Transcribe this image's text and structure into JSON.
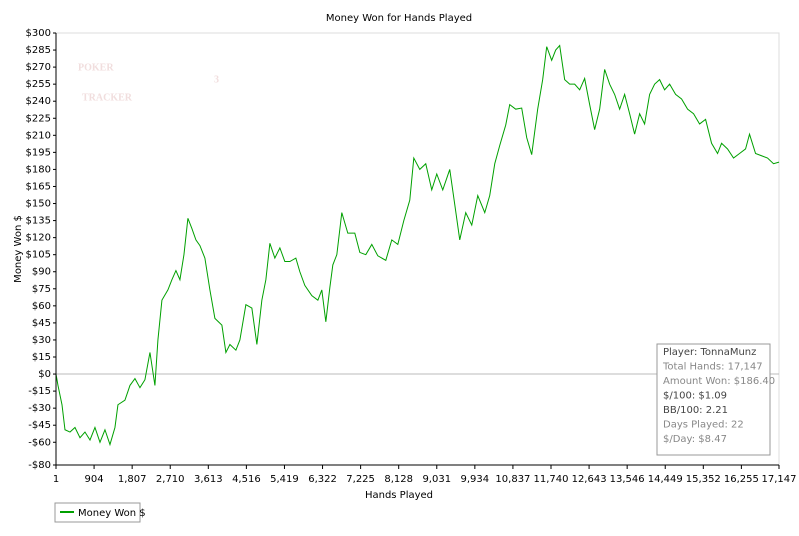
{
  "chart_data": {
    "type": "line",
    "title": "Money Won for Hands Played",
    "x_label": "Hands Played",
    "y_label": "Money Won $",
    "watermark": [
      "POKER",
      "TRACKER",
      "3"
    ],
    "info_box": [
      "Player: TonnaMunz",
      "Total Hands: 17,147",
      "Amount Won: $186.40",
      "$/100: $1.09",
      "BB/100: 2.21",
      "Days Played: 22",
      "$/Day: $8.47"
    ],
    "zero_line": true,
    "legend": "bottom-left",
    "xlim": [
      1,
      17147
    ],
    "ylim": [
      -80,
      300
    ],
    "xticks": [
      1,
      904,
      {
        "value": 1807,
        "label": "1,807"
      },
      {
        "value": 2710,
        "label": "2,710"
      },
      {
        "value": 3613,
        "label": "3,613"
      },
      {
        "value": 4516,
        "label": "4,516"
      },
      {
        "value": 5419,
        "label": "5,419"
      },
      {
        "value": 6322,
        "label": "6,322"
      },
      {
        "value": 7225,
        "label": "7,225"
      },
      {
        "value": 8128,
        "label": "8,128"
      },
      {
        "value": 9031,
        "label": "9,031"
      },
      {
        "value": 9934,
        "label": "9,934"
      },
      {
        "value": 10837,
        "label": "10,837"
      },
      {
        "value": 11740,
        "label": "11,740"
      },
      {
        "value": 12643,
        "label": "12,643"
      },
      {
        "value": 13546,
        "label": "13,546"
      },
      {
        "value": 14449,
        "label": "14,449"
      },
      {
        "value": 15352,
        "label": "15,352"
      },
      {
        "value": 16255,
        "label": "16,255"
      },
      {
        "value": 17147,
        "label": "17,147"
      }
    ],
    "yticks": [
      {
        "value": 300,
        "label": "$300"
      },
      {
        "value": 285,
        "label": "$285"
      },
      {
        "value": 270,
        "label": "$270"
      },
      {
        "value": 255,
        "label": "$255"
      },
      {
        "value": 240,
        "label": "$240"
      },
      {
        "value": 225,
        "label": "$225"
      },
      {
        "value": 210,
        "label": "$210"
      },
      {
        "value": 195,
        "label": "$195"
      },
      {
        "value": 180,
        "label": "$180"
      },
      {
        "value": 165,
        "label": "$165"
      },
      {
        "value": 150,
        "label": "$150"
      },
      {
        "value": 135,
        "label": "$135"
      },
      {
        "value": 120,
        "label": "$120"
      },
      {
        "value": 105,
        "label": "$105"
      },
      {
        "value": 90,
        "label": "$90"
      },
      {
        "value": 75,
        "label": "$75"
      },
      {
        "value": 60,
        "label": "$60"
      },
      {
        "value": 45,
        "label": "$45"
      },
      {
        "value": 30,
        "label": "$30"
      },
      {
        "value": 15,
        "label": "$15"
      },
      {
        "value": 0,
        "label": "$0"
      },
      {
        "value": -15,
        "label": "-$15"
      },
      {
        "value": -30,
        "label": "-$30"
      },
      {
        "value": -45,
        "label": "-$45"
      },
      {
        "value": -60,
        "label": "-$60"
      },
      {
        "value": -80,
        "label": "-$80"
      }
    ],
    "x": [
      1,
      48,
      143,
      214,
      333,
      451,
      570,
      688,
      807,
      925,
      1044,
      1162,
      1281,
      1399,
      1470,
      1636,
      1755,
      1873,
      1992,
      2110,
      2229,
      2347,
      2418,
      2513,
      2655,
      2750,
      2845,
      2940,
      3035,
      3129,
      3224,
      3319,
      3414,
      3532,
      3651,
      3769,
      3935,
      4030,
      4125,
      4267,
      4362,
      4504,
      4646,
      4765,
      4883,
      4978,
      5073,
      5191,
      5310,
      5428,
      5547,
      5689,
      5784,
      5902,
      6068,
      6211,
      6305,
      6400,
      6495,
      6566,
      6661,
      6779,
      6921,
      7087,
      7206,
      7348,
      7490,
      7633,
      7822,
      7964,
      8107,
      8249,
      8391,
      8486,
      8628,
      8770,
      8912,
      9031,
      9173,
      9339,
      9458,
      9576,
      9718,
      9861,
      10003,
      10169,
      10287,
      10406,
      10524,
      10666,
      10761,
      10903,
      11045,
      11164,
      11282,
      11424,
      11543,
      11638,
      11756,
      11851,
      11946,
      12064,
      12183,
      12301,
      12420,
      12538,
      12657,
      12775,
      12894,
      13012,
      13131,
      13249,
      13368,
      13486,
      13605,
      13723,
      13842,
      13960,
      14079,
      14197,
      14316,
      14434,
      14553,
      14695,
      14837,
      14979,
      15121,
      15264,
      15406,
      15548,
      15690,
      15785,
      15927,
      16069,
      16211,
      16354,
      16448,
      16591,
      16733,
      16875,
      17017,
      17147
    ],
    "series": [
      {
        "name": "Money Won $",
        "color": "#00a000",
        "values": [
          0,
          -10,
          -27,
          -49,
          -51,
          -47,
          -56,
          -51,
          -58,
          -47,
          -60,
          -49,
          -62,
          -47,
          -27,
          -23,
          -10,
          -4,
          -12,
          -5,
          19,
          -10,
          30,
          65,
          74,
          83,
          91,
          83,
          105,
          137,
          128,
          118,
          113,
          102,
          74,
          49,
          43,
          19,
          26,
          21,
          30,
          61,
          58,
          26,
          65,
          83,
          115,
          102,
          111,
          99,
          99,
          102,
          90,
          78,
          69,
          65,
          74,
          46,
          76,
          96,
          105,
          142,
          124,
          124,
          107,
          105,
          114,
          104,
          100,
          118,
          114,
          135,
          153,
          190,
          180,
          185,
          162,
          176,
          162,
          180,
          149,
          118,
          142,
          131,
          157,
          142,
          157,
          185,
          201,
          219,
          237,
          233,
          234,
          208,
          193,
          233,
          259,
          288,
          276,
          285,
          289,
          259,
          255,
          255,
          250,
          260,
          237,
          215,
          233,
          268,
          255,
          246,
          233,
          246,
          229,
          211,
          229,
          220,
          246,
          255,
          259,
          250,
          255,
          246,
          242,
          233,
          229,
          220,
          224,
          203,
          194,
          203,
          198,
          190,
          194,
          198,
          211,
          194,
          192,
          190,
          185,
          186.4
        ]
      }
    ]
  }
}
